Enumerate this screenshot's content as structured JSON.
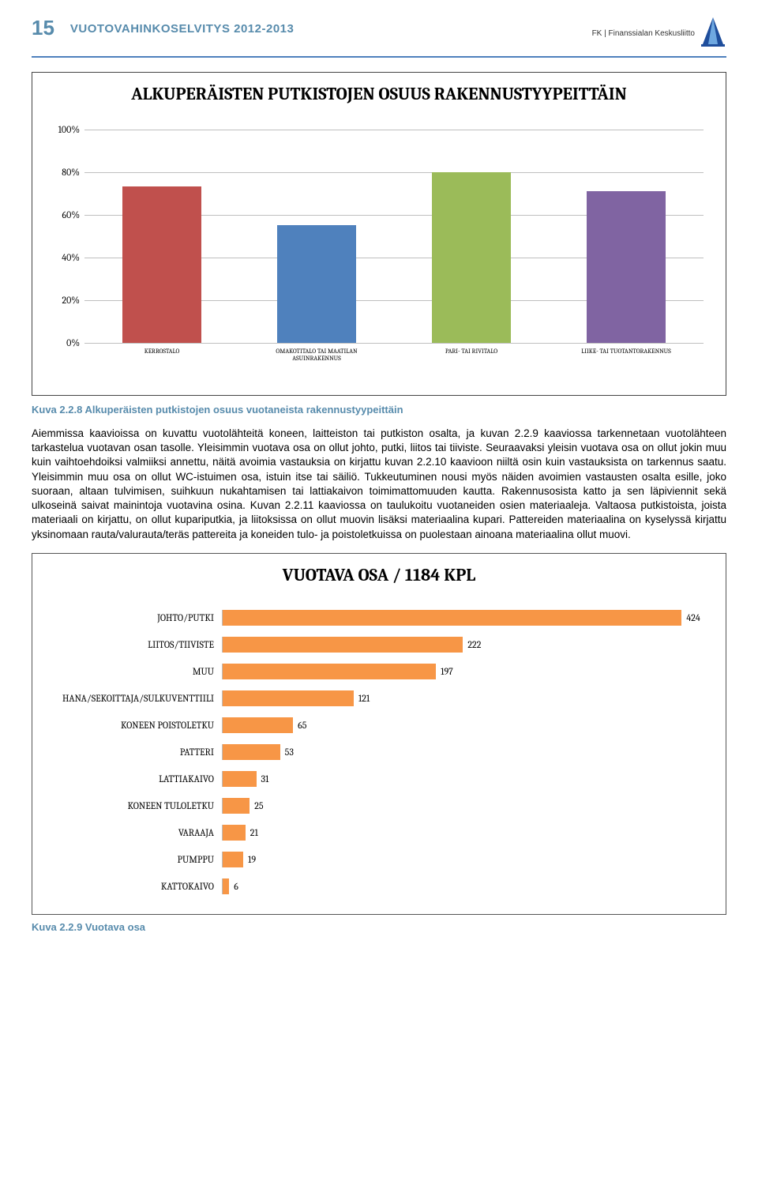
{
  "page_number": "15",
  "doc_title": "VUOTOVAHINKOSELVITYS 2012-2013",
  "org_text": "FK | Finanssialan Keskusliitto",
  "chart1": {
    "title": "ALKUPERÄISTEN PUTKISTOJEN OSUUS RAKENNUSTYYPEITTÄIN",
    "type": "bar",
    "ylim": [
      0,
      100
    ],
    "ytick_step": 20,
    "yticks": [
      "0%",
      "20%",
      "40%",
      "60%",
      "80%",
      "100%"
    ],
    "grid_color": "#bfbfbf",
    "categories": [
      "KERROSTALO",
      "OMAKOTITALO TAI MAATILAN ASUINRAKENNUS",
      "PARI- TAI RIVITALO",
      "LIIKE- TAI TUOTANTORAKENNUS"
    ],
    "values": [
      73,
      55,
      80,
      71
    ],
    "bar_colors": [
      "#c0504d",
      "#4f81bd",
      "#9bbb59",
      "#8064a2"
    ]
  },
  "caption1": "Kuva 2.2.8 Alkuperäisten putkistojen osuus vuotaneista rakennustyypeittäin",
  "body_text": "Aiemmissa kaavioissa on kuvattu vuotolähteitä koneen, laitteiston tai putkiston osalta, ja kuvan 2.2.9 kaaviossa tarkennetaan vuotolähteen tarkastelua vuotavan osan tasolle. Yleisimmin vuotava osa on ollut johto, putki, liitos tai tiiviste. Seuraavaksi yleisin vuotava osa on ollut jokin muu kuin vaihtoehdoiksi valmiiksi annettu, näitä avoimia vastauksia on kirjattu kuvan 2.2.10 kaavioon niiltä osin kuin vastauksista on tarkennus saatu. Yleisimmin muu osa on ollut WC-istuimen osa, istuin itse tai säiliö. Tukkeutuminen nousi myös näiden avoimien vastausten osalta esille, joko suoraan, altaan tulvimisen, suihkuun nukahtamisen tai lattiakaivon toimimattomuuden kautta. Rakennusosista katto ja sen läpiviennit sekä ulkoseinä saivat mainintoja vuotavina osina. Kuvan 2.2.11 kaaviossa on taulukoitu vuotaneiden osien materiaaleja. Valtaosa putkistoista, joista materiaali on kirjattu, on ollut kupariputkia, ja liitoksissa on ollut muovin lisäksi materiaalina kupari. Pattereiden materiaalina on kyselyssä kirjattu yksinomaan rauta/valurauta/teräs pattereita ja koneiden tulo- ja poistoletkuissa on puolestaan ainoana materiaalina ollut muovi.",
  "chart2": {
    "title": "VUOTAVA OSA / 1184 KPL",
    "type": "hbar",
    "bar_color": "#f79646",
    "max": 450,
    "items": [
      {
        "label": "JOHTO/PUTKI",
        "value": 424
      },
      {
        "label": "LIITOS/TIIVISTE",
        "value": 222
      },
      {
        "label": "MUU",
        "value": 197
      },
      {
        "label": "HANA/SEKOITTAJA/SULKUVENTTIILI",
        "value": 121
      },
      {
        "label": "KONEEN POISTOLETKU",
        "value": 65
      },
      {
        "label": "PATTERI",
        "value": 53
      },
      {
        "label": "LATTIAKAIVO",
        "value": 31
      },
      {
        "label": "KONEEN TULOLETKU",
        "value": 25
      },
      {
        "label": "VARAAJA",
        "value": 21
      },
      {
        "label": "PUMPPU",
        "value": 19
      },
      {
        "label": "KATTOKAIVO",
        "value": 6
      }
    ]
  },
  "caption2": "Kuva 2.2.9 Vuotava osa"
}
